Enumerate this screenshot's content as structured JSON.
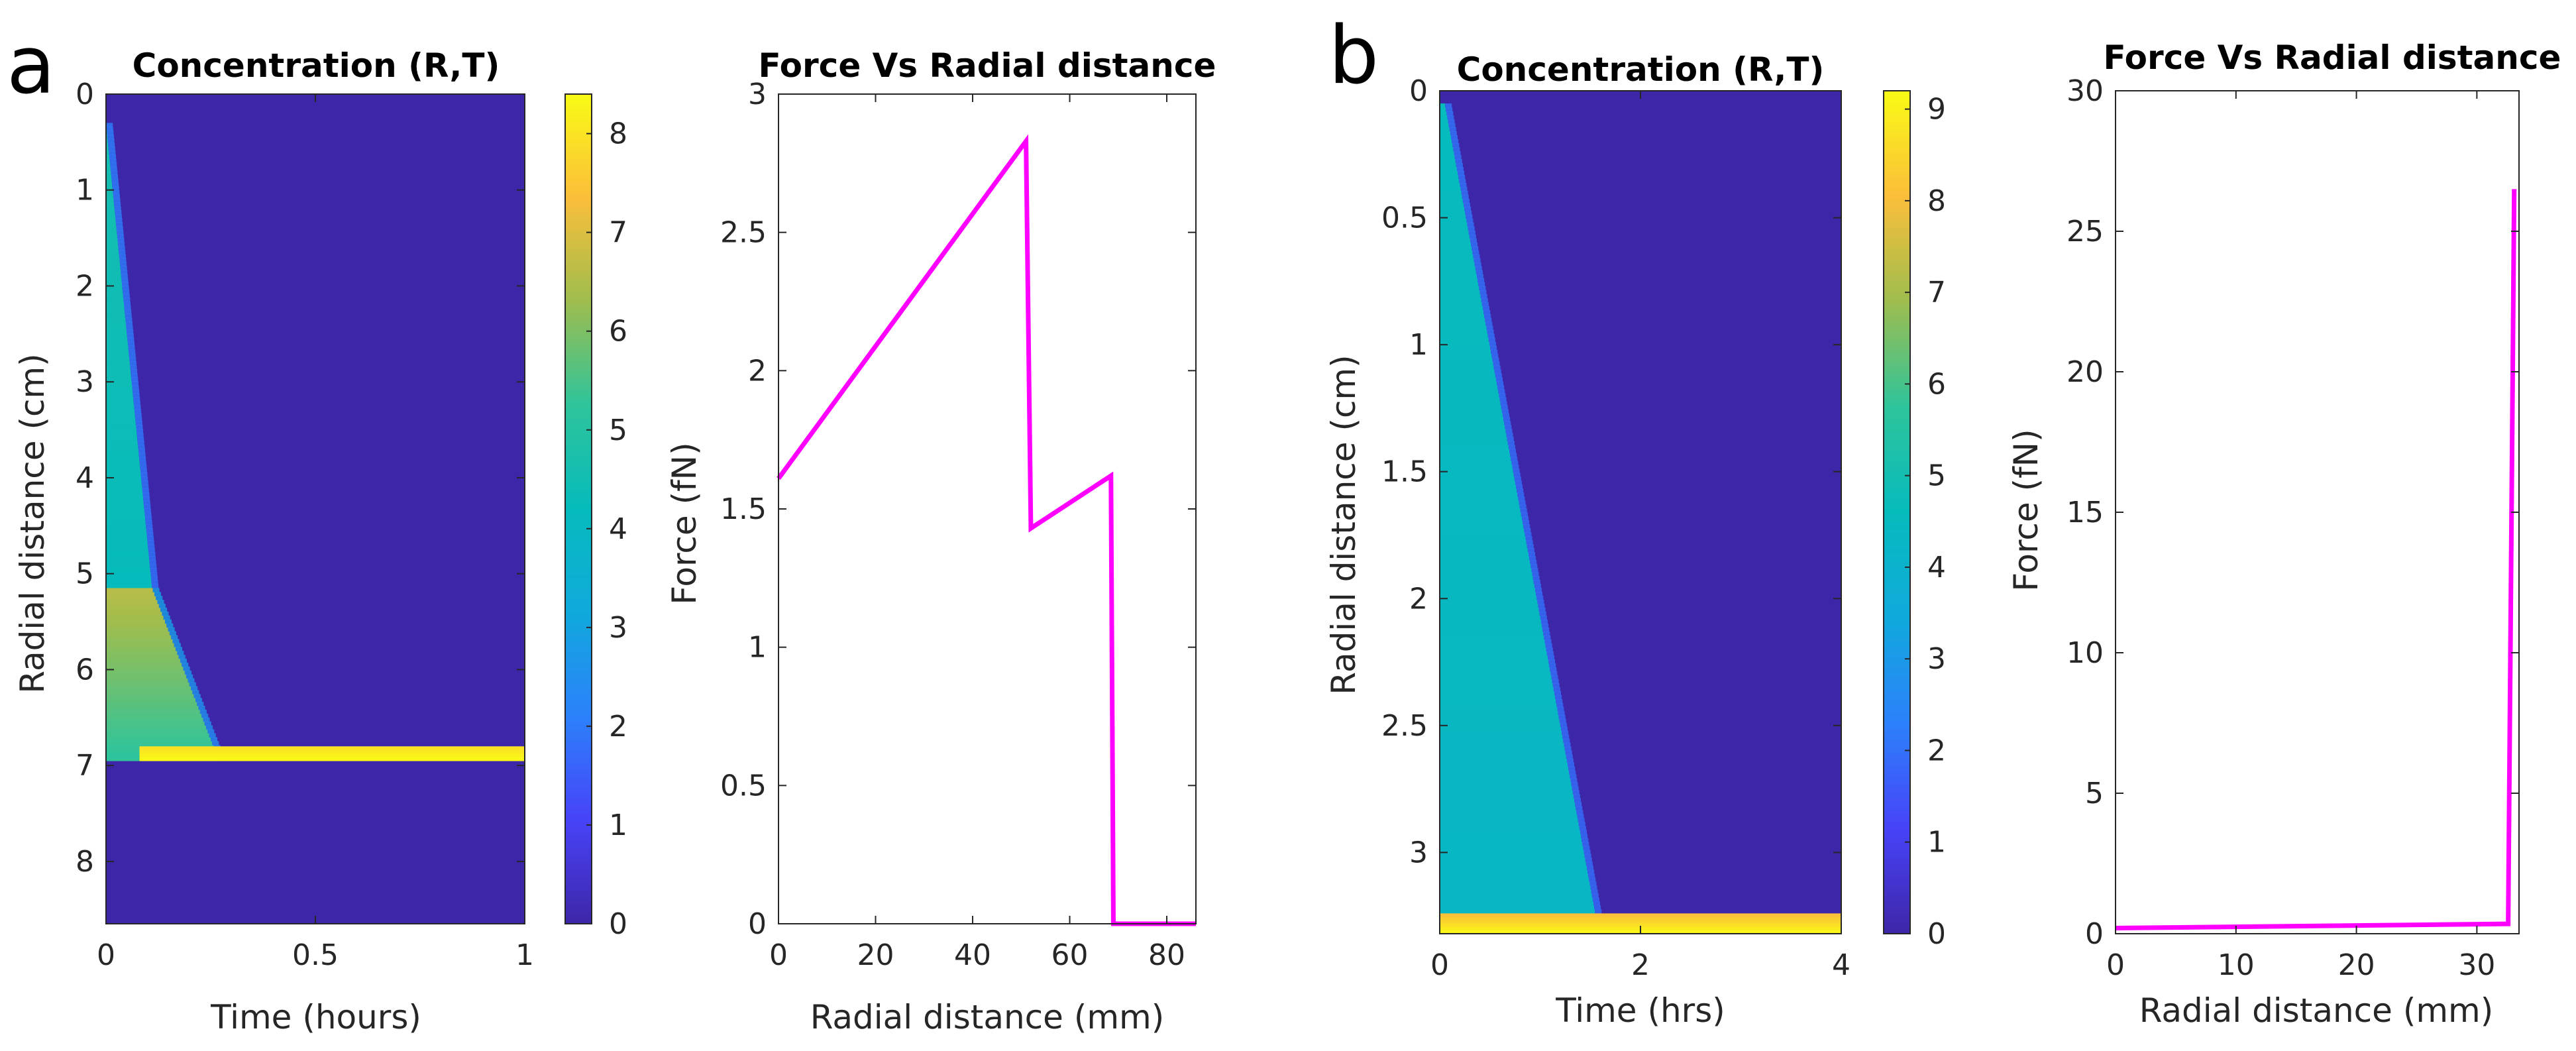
{
  "panels": [
    "a",
    "b"
  ],
  "colormap": [
    "#3e26a8",
    "#4743f8",
    "#2c81fb",
    "#10a9dc",
    "#06bbbc",
    "#2ec49b",
    "#9ebd4e",
    "#fbbe3a",
    "#f9fb15"
  ],
  "line_color": "#ff00ff",
  "chart_data": [
    {
      "id": "a-heatmap",
      "type": "heatmap",
      "title": "Concentration (R,T)",
      "xlabel": "Time (hours)",
      "ylabel": "Radial distance (cm)",
      "xlim": [
        0,
        1
      ],
      "ylim": [
        0,
        8.65
      ],
      "y_reversed": true,
      "xticks": [
        0,
        0.5,
        1
      ],
      "xtick_labels": [
        "0",
        "0.5",
        "1"
      ],
      "yticks": [
        0,
        1,
        2,
        3,
        4,
        5,
        6,
        7,
        8
      ],
      "ytick_labels": [
        "0",
        "1",
        "2",
        "3",
        "4",
        "5",
        "6",
        "7",
        "8"
      ],
      "colorbar": {
        "min": 0,
        "max": 8.4,
        "ticks": [
          0,
          1,
          2,
          3,
          4,
          5,
          6,
          7,
          8
        ],
        "tick_labels": [
          "0",
          "1",
          "2",
          "3",
          "4",
          "5",
          "6",
          "7",
          "8"
        ]
      },
      "background_value": 0,
      "regions": [
        {
          "kind": "front",
          "r0": 0.3,
          "r1": 5.15,
          "t_start": 0.0,
          "t_end": 0.11,
          "v_start": 4.6,
          "v_end": 4.2
        },
        {
          "kind": "front",
          "r0": 5.15,
          "r1": 6.95,
          "t_start": 0.11,
          "t_end": 0.27,
          "v_start": 6.6,
          "v_end": 5.2
        },
        {
          "kind": "band",
          "r0": 6.8,
          "r1": 6.95,
          "t_start": 0.08,
          "t_end": 1.0,
          "v_start": 7.9,
          "v_end": 8.4
        }
      ]
    },
    {
      "id": "a-line",
      "type": "line",
      "title": "Force Vs Radial distance",
      "xlabel": "Radial distance (mm)",
      "ylabel": "Force (fN)",
      "xlim": [
        0,
        86
      ],
      "ylim": [
        0,
        3
      ],
      "xticks": [
        0,
        20,
        40,
        60,
        80
      ],
      "xtick_labels": [
        "0",
        "20",
        "40",
        "60",
        "80"
      ],
      "yticks": [
        0,
        0.5,
        1,
        1.5,
        2,
        2.5,
        3
      ],
      "ytick_labels": [
        "0",
        "0.5",
        "1",
        "1.5",
        "2",
        "2.5",
        "3"
      ],
      "series": [
        {
          "name": "Force",
          "x": [
            0,
            51,
            52,
            68.5,
            69,
            86
          ],
          "y": [
            1.61,
            2.83,
            1.43,
            1.62,
            0,
            0
          ]
        }
      ]
    },
    {
      "id": "b-heatmap",
      "type": "heatmap",
      "title": "Concentration (R,T)",
      "xlabel": "Time (hrs)",
      "ylabel": "Radial distance (cm)",
      "xlim": [
        0,
        4
      ],
      "ylim": [
        0,
        3.32
      ],
      "y_reversed": true,
      "xticks": [
        0,
        2,
        4
      ],
      "xtick_labels": [
        "0",
        "2",
        "4"
      ],
      "yticks": [
        0,
        0.5,
        1,
        1.5,
        2,
        2.5,
        3
      ],
      "ytick_labels": [
        "0",
        "0.5",
        "1",
        "1.5",
        "2",
        "2.5",
        "3"
      ],
      "colorbar": {
        "min": 0,
        "max": 9.2,
        "ticks": [
          0,
          1,
          2,
          3,
          4,
          5,
          6,
          7,
          8,
          9
        ],
        "tick_labels": [
          "0",
          "1",
          "2",
          "3",
          "4",
          "5",
          "6",
          "7",
          "8",
          "9"
        ]
      },
      "background_value": 0,
      "regions": [
        {
          "kind": "front",
          "r0": 0.05,
          "r1": 3.24,
          "t_start": 0.05,
          "t_end": 1.55,
          "v_start": 4.6,
          "v_end": 4.3
        },
        {
          "kind": "band",
          "r0": 3.24,
          "r1": 3.32,
          "t_start": 0.0,
          "t_end": 4.0,
          "v_start": 8.0,
          "v_end": 9.2
        }
      ]
    },
    {
      "id": "b-line",
      "type": "line",
      "title": "Force Vs Radial distance",
      "xlabel": "Radial distance (mm)",
      "ylabel": "Force (fN)",
      "xlim": [
        0,
        33.5
      ],
      "ylim": [
        0,
        30
      ],
      "xticks": [
        0,
        10,
        20,
        30
      ],
      "xtick_labels": [
        "0",
        "10",
        "20",
        "30"
      ],
      "yticks": [
        0,
        5,
        10,
        15,
        20,
        25,
        30
      ],
      "ytick_labels": [
        "0",
        "5",
        "10",
        "15",
        "20",
        "25",
        "30"
      ],
      "series": [
        {
          "name": "Force",
          "x": [
            0,
            32.6,
            33.1
          ],
          "y": [
            0.2,
            0.35,
            26.5
          ]
        }
      ]
    }
  ]
}
